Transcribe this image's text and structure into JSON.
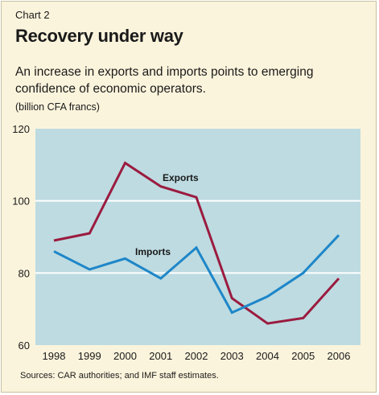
{
  "header": {
    "label": "Chart 2",
    "title": "Recovery under way",
    "subtitle": "An increase in exports and imports points to emerging confidence of economic operators.",
    "units": "(billion CFA francs)"
  },
  "footer": {
    "source": "Sources: CAR authorities; and IMF staff estimates."
  },
  "colors": {
    "plot_background": "#bddbe1",
    "exports": "#9b1b3f",
    "imports": "#1e86c8",
    "gridline": "#ffffff"
  },
  "chart_data": {
    "type": "line",
    "title": "Recovery under way",
    "ylabel": "(billion CFA francs)",
    "xlabel": "",
    "categories": [
      "1998",
      "1999",
      "2000",
      "2001",
      "2002",
      "2003",
      "2004",
      "2005",
      "2006"
    ],
    "ylim": [
      60,
      120
    ],
    "yticks": [
      "60",
      "80",
      "100",
      "120"
    ],
    "grid": "horizontal",
    "legend": "inline labels",
    "series": [
      {
        "name": "Exports",
        "values": [
          89,
          91,
          110.5,
          104,
          101,
          73,
          66,
          67.5,
          78.5
        ]
      },
      {
        "name": "Imports",
        "values": [
          86,
          81,
          84,
          78.5,
          87,
          69,
          73.5,
          80,
          90.5
        ]
      }
    ]
  }
}
